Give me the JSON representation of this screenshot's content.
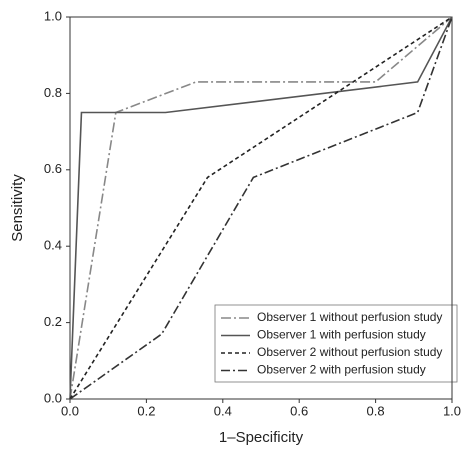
{
  "chart_data": {
    "type": "line",
    "xlabel": "1–Specificity",
    "ylabel": "Sensitivity",
    "xlim": [
      0,
      1
    ],
    "ylim": [
      0,
      1
    ],
    "xticks": [
      {
        "value": 0,
        "label": "0.0"
      },
      0.2,
      0.4,
      0.6,
      0.8,
      {
        "value": 1,
        "label": "1.0"
      }
    ],
    "yticks": [
      {
        "value": 0,
        "label": "0.0"
      },
      0.2,
      0.4,
      0.6,
      0.8,
      {
        "value": 1,
        "label": "1.0"
      }
    ],
    "series": [
      {
        "name": "Observer 1 without perfusion study",
        "color": "#888888",
        "dash": "10 3 2 3",
        "x": [
          0,
          0.12,
          0.33,
          0.8,
          1
        ],
        "values": [
          0,
          0.75,
          0.83,
          0.83,
          1
        ]
      },
      {
        "name": "Observer 1 with perfusion study",
        "color": "#555555",
        "dash": "none",
        "x": [
          0,
          0.03,
          0.25,
          0.91,
          1
        ],
        "values": [
          0,
          0.75,
          0.75,
          0.83,
          1
        ]
      },
      {
        "name": "Observer 2 without perfusion study",
        "color": "#222222",
        "dash": "4 3",
        "x": [
          0,
          0.36,
          1
        ],
        "values": [
          0,
          0.58,
          1
        ]
      },
      {
        "name": "Observer 2 with perfusion study",
        "color": "#333333",
        "dash": "9 3 2 3",
        "x": [
          0,
          0.24,
          0.48,
          0.91,
          1
        ],
        "values": [
          0,
          0.17,
          0.58,
          0.75,
          1
        ]
      }
    ]
  }
}
